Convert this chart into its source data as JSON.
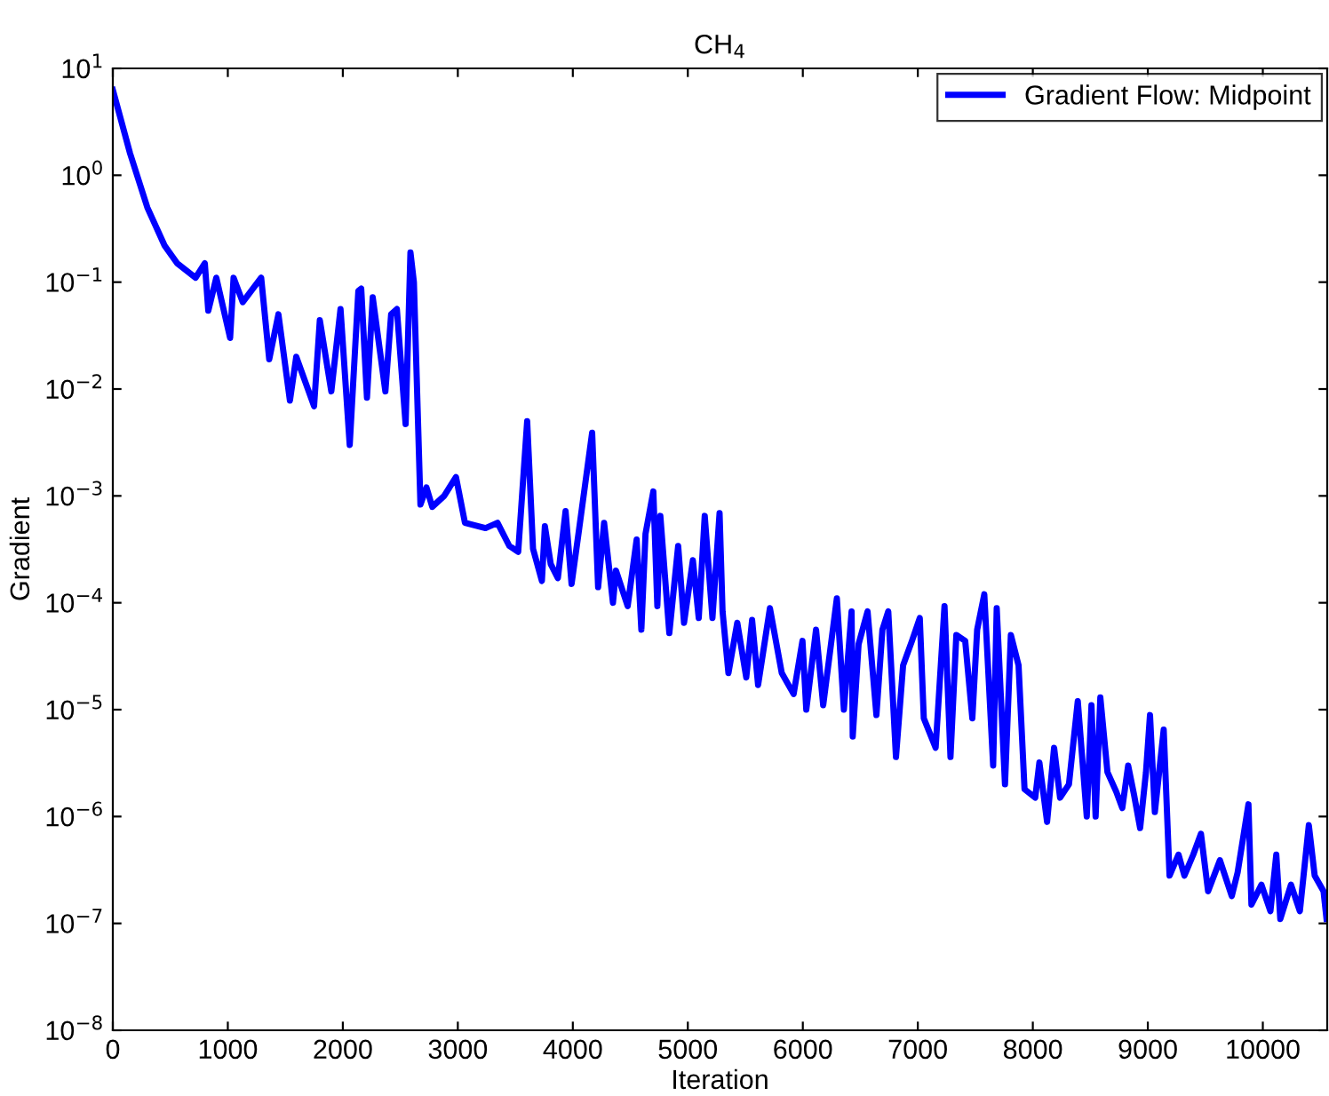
{
  "chart_data": {
    "type": "line",
    "title": "CH$_{4}$",
    "xlabel": "Iteration",
    "ylabel": "Gradient",
    "log": "y",
    "grid": false,
    "legend": "top right",
    "xlim": [
      0,
      10560
    ],
    "xticks": [
      0,
      1000,
      2000,
      3000,
      4000,
      5000,
      6000,
      7000,
      8000,
      9000,
      10000
    ],
    "ylim": [
      1e-08,
      10
    ],
    "yticks": [
      {
        "value": 1e-08,
        "label": "10$^{−8}$"
      },
      {
        "value": 1e-07,
        "label": "10$^{−7}$"
      },
      {
        "value": 1e-06,
        "label": "10$^{−6}$"
      },
      {
        "value": 1e-05,
        "label": "10$^{−5}$"
      },
      {
        "value": 0.0001,
        "label": "10$^{−4}$"
      },
      {
        "value": 0.001,
        "label": "10$^{−3}$"
      },
      {
        "value": 0.01,
        "label": "10$^{−2}$"
      },
      {
        "value": 0.1,
        "label": "10$^{−1}$"
      },
      {
        "value": 1,
        "label": "10$^{0}$"
      },
      {
        "value": 10,
        "label": "10$^{1}$"
      }
    ],
    "series": [
      {
        "name": "Gradient Flow: Midpoint",
        "color": "#0000ff",
        "x": [
          0,
          150,
          300,
          450,
          560,
          720,
          800,
          830,
          900,
          1020,
          1050,
          1130,
          1290,
          1360,
          1440,
          1540,
          1595,
          1750,
          1800,
          1900,
          1980,
          2060,
          2135,
          2160,
          2210,
          2260,
          2370,
          2420,
          2470,
          2546,
          2588,
          2618,
          2675,
          2727,
          2778,
          2881,
          2984,
          3062,
          3241,
          3345,
          3448,
          3525,
          3603,
          3654,
          3731,
          3757,
          3808,
          3870,
          3937,
          3989,
          4056,
          4168,
          4220,
          4272,
          4349,
          4375,
          4477,
          4555,
          4596,
          4632,
          4700,
          4735,
          4761,
          4839,
          4916,
          4967,
          5044,
          5095,
          5147,
          5214,
          5276,
          5302,
          5353,
          5430,
          5508,
          5559,
          5611,
          5714,
          5817,
          5920,
          5997,
          6030,
          6115,
          6177,
          6296,
          6357,
          6424,
          6434,
          6485,
          6563,
          6640,
          6692,
          6743,
          6810,
          6872,
          6949,
          7017,
          7052,
          7155,
          7232,
          7284,
          7335,
          7412,
          7474,
          7516,
          7578,
          7655,
          7686,
          7758,
          7809,
          7876,
          7928,
          8021,
          8057,
          8124,
          8185,
          8237,
          8314,
          8391,
          8469,
          8510,
          8546,
          8587,
          8649,
          8726,
          8778,
          8829,
          8880,
          8933,
          8984,
          9019,
          9061,
          9138,
          9189,
          9267,
          9318,
          9395,
          9462,
          9524,
          9627,
          9730,
          9781,
          9875,
          9901,
          9988,
          10066,
          10117,
          10152,
          10245,
          10322,
          10400,
          10451,
          10528,
          10554
        ],
        "values": [
          6.3,
          1.6,
          0.5,
          0.22,
          0.15,
          0.11,
          0.15,
          0.054,
          0.11,
          0.03,
          0.11,
          0.065,
          0.11,
          0.019,
          0.05,
          0.0078,
          0.02,
          0.0069,
          0.044,
          0.0095,
          0.056,
          0.003,
          0.083,
          0.087,
          0.0083,
          0.072,
          0.0095,
          0.05,
          0.056,
          0.0047,
          0.19,
          0.1,
          0.00083,
          0.0012,
          0.00079,
          0.001,
          0.0015,
          0.00056,
          0.0005,
          0.00056,
          0.00034,
          0.0003,
          0.005,
          0.00032,
          0.00016,
          0.00052,
          0.00023,
          0.00017,
          0.00072,
          0.00015,
          0.0005,
          0.0039,
          0.00014,
          0.00056,
          0.0001,
          0.0002,
          9.3e-05,
          0.00039,
          5.6e-05,
          0.00044,
          0.0011,
          9.3e-05,
          0.00065,
          5.2e-05,
          0.00034,
          6.5e-05,
          0.00025,
          7.2e-05,
          0.00065,
          7.2e-05,
          0.00069,
          8.3e-05,
          2.2e-05,
          6.5e-05,
          2e-05,
          6.9e-05,
          1.7e-05,
          8.9e-05,
          2.2e-05,
          1.4e-05,
          4.4e-05,
          1e-05,
          5.6e-05,
          1.1e-05,
          0.00011,
          1e-05,
          8.3e-05,
          5.6e-06,
          4.1e-05,
          8.3e-05,
          8.9e-06,
          5.6e-05,
          8.3e-05,
          3.6e-06,
          2.6e-05,
          4.4e-05,
          7.2e-05,
          8.3e-06,
          4.4e-06,
          9.3e-05,
          3.6e-06,
          5e-05,
          4.4e-05,
          8.3e-06,
          5.6e-05,
          0.00012,
          3e-06,
          8.9e-05,
          2e-06,
          5e-05,
          2.6e-05,
          1.8e-06,
          1.5e-06,
          3.2e-06,
          8.9e-07,
          4.4e-06,
          1.5e-06,
          2e-06,
          1.2e-05,
          1e-06,
          1.1e-05,
          1e-06,
          1.3e-05,
          2.6e-06,
          1.7e-06,
          1.2e-06,
          3e-06,
          1.6e-06,
          7.8e-07,
          2.6e-06,
          8.9e-06,
          1.1e-06,
          6.5e-06,
          2.8e-07,
          4.4e-07,
          2.8e-07,
          4.4e-07,
          6.9e-07,
          2e-07,
          3.9e-07,
          1.8e-07,
          3e-07,
          1.3e-06,
          1.5e-07,
          2.3e-07,
          1.3e-07,
          4.4e-07,
          1.1e-07,
          2.3e-07,
          1.3e-07,
          8.3e-07,
          2.8e-07,
          2e-07,
          1.1e-07
        ]
      }
    ]
  }
}
